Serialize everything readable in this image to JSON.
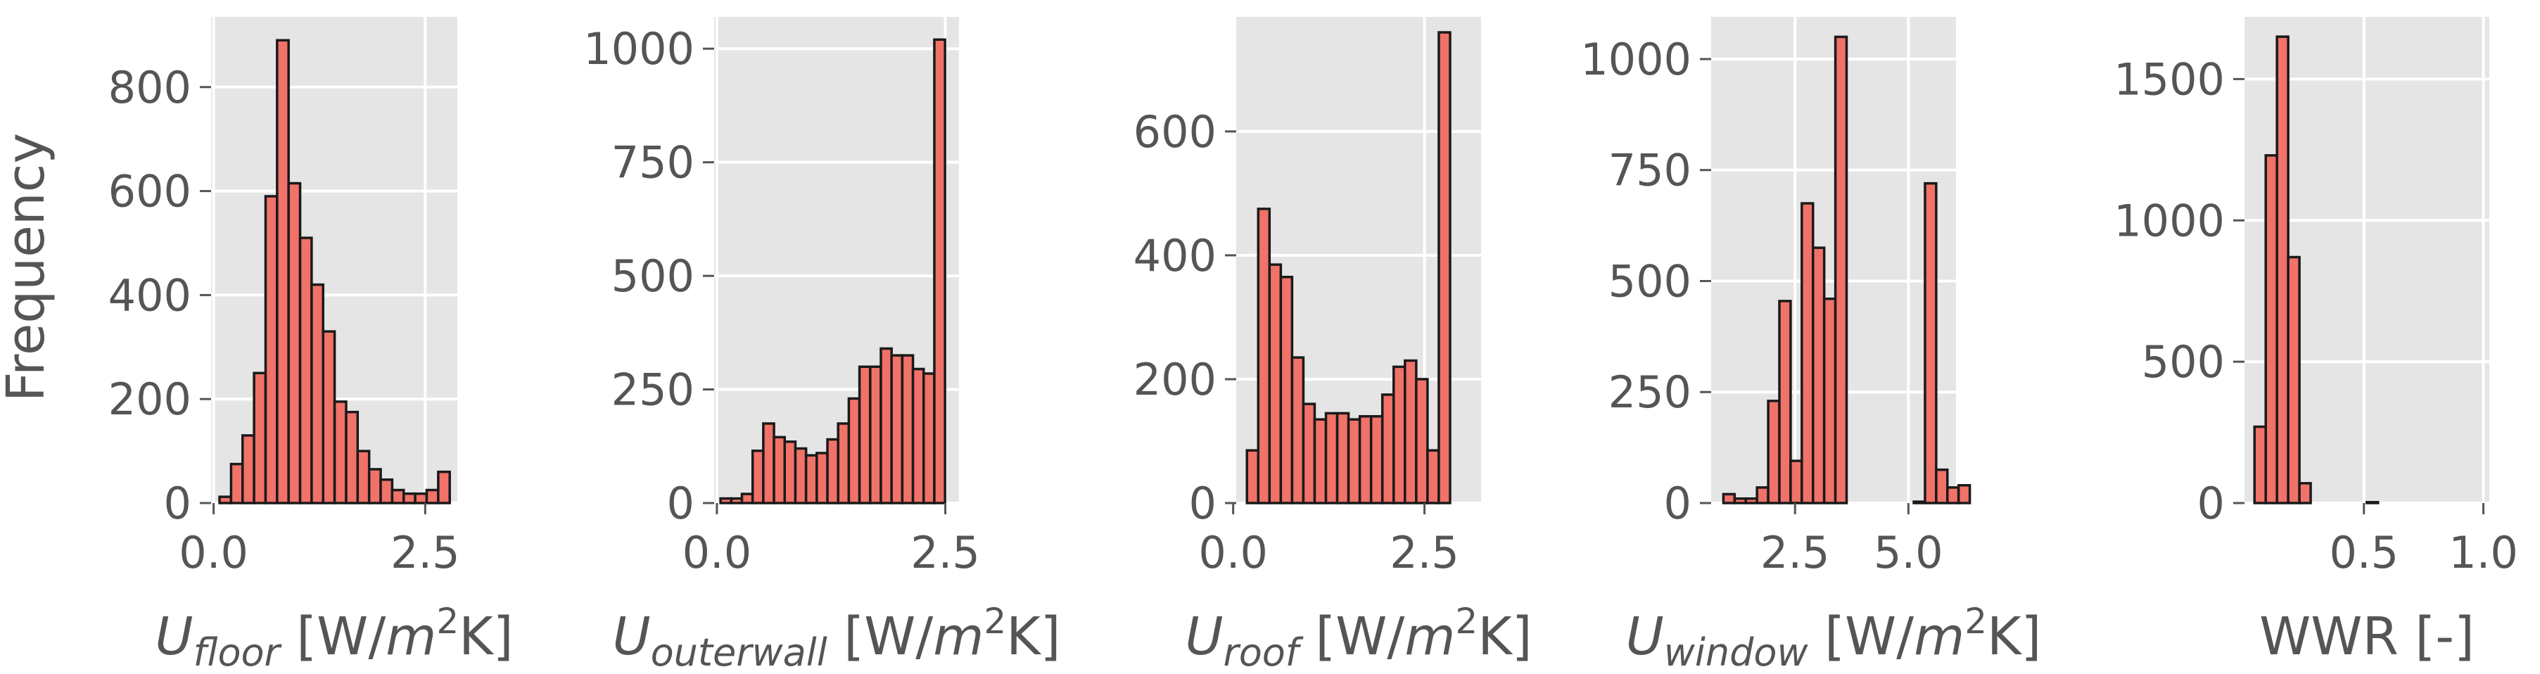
{
  "colors": {
    "bar_fill": "#f07269",
    "bar_edge": "#1a1a1a",
    "panel_bg": "#e5e5e5",
    "grid": "#ffffff",
    "text": "#555555"
  },
  "figure": {
    "ylabel": "Frequency"
  },
  "chart_data": [
    {
      "type": "bar",
      "xlabel": {
        "base": "U",
        "sub": "floor",
        "unit_pre": " [W/",
        "unit_var": "m",
        "unit_sup": "2",
        "unit_post": "K]"
      },
      "ylabel": "Frequency",
      "xlim": [
        -0.03,
        2.88
      ],
      "ylim": [
        0,
        935
      ],
      "xticks": [
        0.0,
        2.5
      ],
      "xtick_labels": [
        "0.0",
        "2.5"
      ],
      "yticks": [
        0,
        200,
        400,
        600,
        800
      ],
      "ytick_labels": [
        "0",
        "200",
        "400",
        "600",
        "800"
      ],
      "grid": true,
      "bin_start": 0.07,
      "bin_width": 0.136,
      "values": [
        12,
        75,
        130,
        250,
        590,
        890,
        615,
        510,
        420,
        330,
        195,
        175,
        100,
        65,
        45,
        25,
        18,
        18,
        25,
        60
      ]
    },
    {
      "type": "bar",
      "xlabel": {
        "base": "U",
        "sub": "outerwall",
        "unit_pre": " [W/",
        "unit_var": "m",
        "unit_sup": "2",
        "unit_post": "K]"
      },
      "ylabel": "",
      "xlim": [
        -0.03,
        2.65
      ],
      "ylim": [
        0,
        1070
      ],
      "xticks": [
        0.0,
        2.5
      ],
      "xtick_labels": [
        "0.0",
        "2.5"
      ],
      "yticks": [
        0,
        250,
        500,
        750,
        1000
      ],
      "ytick_labels": [
        "0",
        "250",
        "500",
        "750",
        "1000"
      ],
      "grid": true,
      "bin_start": 0.04,
      "bin_width": 0.117,
      "values": [
        10,
        10,
        20,
        115,
        175,
        145,
        135,
        120,
        105,
        110,
        140,
        175,
        230,
        300,
        300,
        340,
        325,
        325,
        295,
        285,
        1020
      ]
    },
    {
      "type": "bar",
      "xlabel": {
        "base": "U",
        "sub": "roof",
        "unit_pre": " [W/",
        "unit_var": "m",
        "unit_sup": "2",
        "unit_post": "K]"
      },
      "ylabel": "",
      "xlim": [
        0.04,
        3.24
      ],
      "ylim": [
        0,
        785
      ],
      "xticks": [
        0.0,
        2.5
      ],
      "xtick_labels": [
        "0.0",
        "2.5"
      ],
      "yticks": [
        0,
        200,
        400,
        600
      ],
      "ytick_labels": [
        "0",
        "200",
        "400",
        "600"
      ],
      "grid": true,
      "bin_start": 0.18,
      "bin_width": 0.1475,
      "values": [
        85,
        475,
        385,
        365,
        235,
        160,
        135,
        145,
        145,
        135,
        140,
        140,
        175,
        220,
        230,
        200,
        85,
        760
      ]
    },
    {
      "type": "bar",
      "xlabel": {
        "base": "U",
        "sub": "window",
        "unit_pre": " [W/",
        "unit_var": "m",
        "unit_sup": "2",
        "unit_post": "K]"
      },
      "ylabel": "",
      "xlim": [
        0.65,
        6.05
      ],
      "ylim": [
        0,
        1095
      ],
      "xticks": [
        2.5,
        5.0
      ],
      "xtick_labels": [
        "2.5",
        "5.0"
      ],
      "yticks": [
        0,
        250,
        500,
        750,
        1000
      ],
      "ytick_labels": [
        "0",
        "250",
        "500",
        "750",
        "1000"
      ],
      "grid": true,
      "bin_start": 0.92,
      "bin_width": 0.247,
      "values": [
        20,
        10,
        10,
        35,
        230,
        455,
        95,
        675,
        575,
        460,
        1050,
        0,
        0,
        0,
        0,
        0,
        0,
        3,
        720,
        75,
        35,
        40
      ]
    },
    {
      "type": "bar",
      "xlabel": {
        "base": "WWR [-]",
        "sub": "",
        "unit_pre": "",
        "unit_var": "",
        "unit_sup": "",
        "unit_post": ""
      },
      "ylabel": "",
      "xlim": [
        0.0,
        1.025
      ],
      "ylim": [
        0,
        1720
      ],
      "xticks": [
        0.5,
        1.0
      ],
      "xtick_labels": [
        "0.5",
        "1.0"
      ],
      "yticks": [
        0,
        500,
        1000,
        1500
      ],
      "ytick_labels": [
        "0",
        "500",
        "1000",
        "1500"
      ],
      "grid": true,
      "bin_start": 0.042,
      "bin_width": 0.047,
      "values": [
        270,
        1230,
        1650,
        870,
        70,
        0,
        0,
        0,
        0,
        0,
        3
      ]
    }
  ]
}
